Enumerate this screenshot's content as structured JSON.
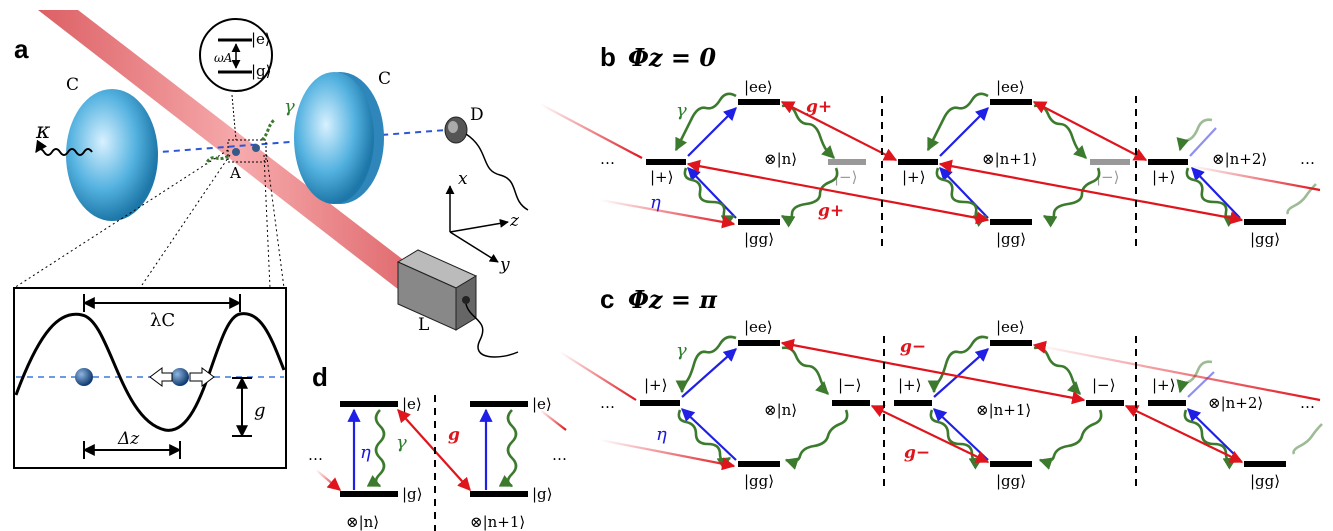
{
  "panels": {
    "a": "a",
    "b": "b",
    "c": "c",
    "d": "d"
  },
  "panel_b": {
    "title": "Φz = 0",
    "states": {
      "ee": "|ee⟩",
      "gg": "|gg⟩",
      "plus": "|+⟩",
      "minus": "|−⟩"
    },
    "manifolds": [
      "⊗|n⟩",
      "⊗|n+1⟩",
      "⊗|n+2⟩"
    ],
    "coupling": "g+",
    "gamma": "γ",
    "eta": "η",
    "dots": "…"
  },
  "panel_c": {
    "title": "Φz = π",
    "coupling": "g−",
    "gamma": "γ",
    "eta": "η",
    "manifolds": [
      "⊗|n⟩",
      "⊗|n+1⟩",
      "⊗|n+2⟩"
    ],
    "dots": "…"
  },
  "panel_a": {
    "cavity": "C",
    "detector": "D",
    "atom": "A",
    "laser": "L",
    "kappa": "κ",
    "gamma": "γ",
    "axes": {
      "x": "x",
      "y": "y",
      "z": "z"
    },
    "inset_levels": {
      "e": "|e⟩",
      "g": "|g⟩",
      "omega": "ωA"
    },
    "wavelength": "λC",
    "separation": "Δz",
    "coupling": "g"
  },
  "panel_d": {
    "e": "|e⟩",
    "g": "|g⟩",
    "manifolds": [
      "⊗|n⟩",
      "⊗|n+1⟩"
    ],
    "coupling": "g",
    "eta": "η",
    "gamma": "γ",
    "dots": "…"
  },
  "colors": {
    "laser": "#e8666a",
    "cavity": "#3c9fd0",
    "coupling": "#e0141c",
    "drive": "#1f1fe6",
    "decay": "#3c7a2e"
  }
}
